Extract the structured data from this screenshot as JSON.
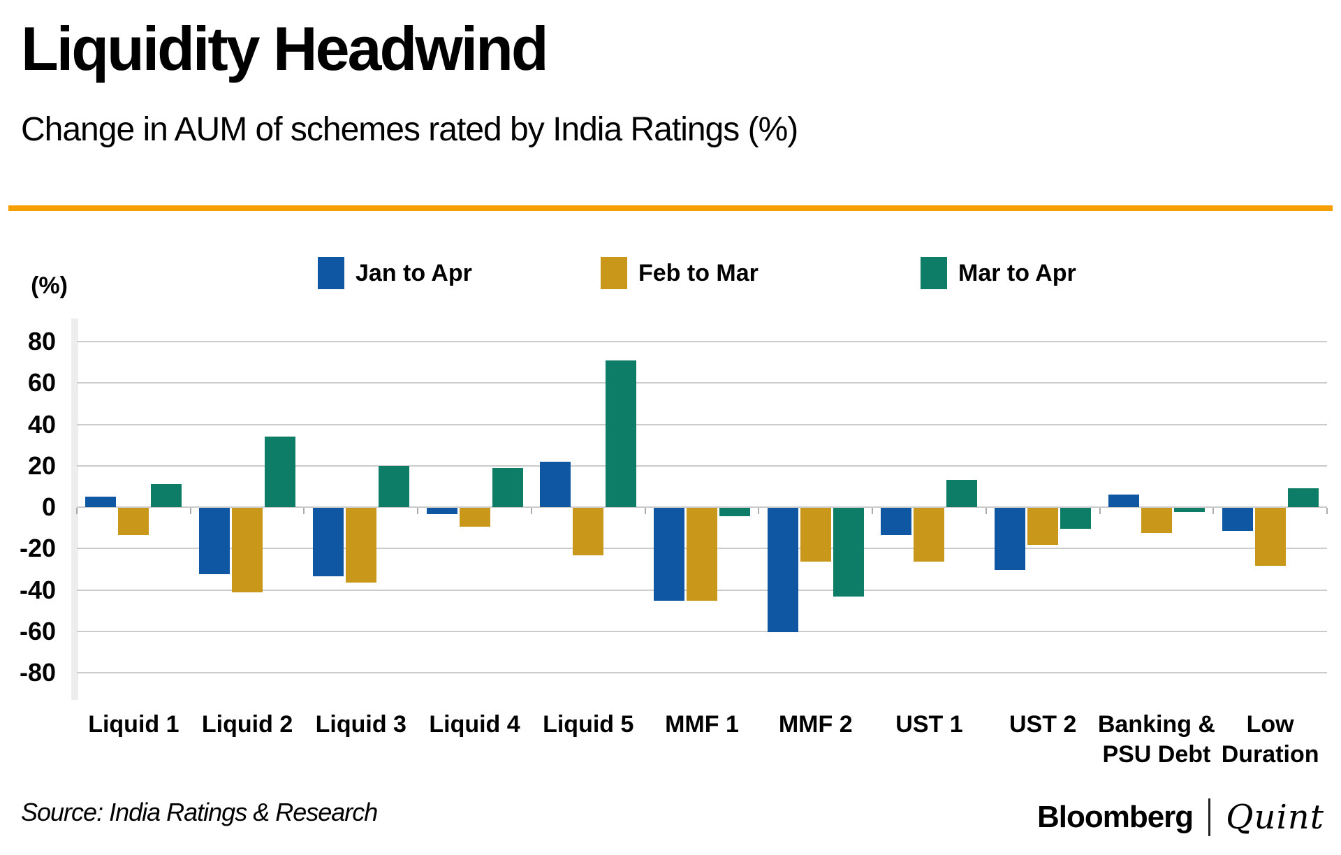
{
  "header": {
    "title": "Liquidity Headwind",
    "subtitle": "Change in AUM of schemes rated by India Ratings (%)"
  },
  "colors": {
    "accent_rule": "#F59E00",
    "gridline": "#cbcbcb",
    "bar_blue": "#0F57A2",
    "bar_gold": "#C9981A",
    "bar_teal": "#0E7D68"
  },
  "chart_data": {
    "type": "bar",
    "title": "Liquidity Headwind",
    "subtitle": "Change in AUM of schemes rated by India Ratings (%)",
    "y_unit_label": "(%)",
    "ylim": [
      -80,
      80
    ],
    "yticks": [
      80,
      60,
      40,
      20,
      0,
      -20,
      -40,
      -60,
      -80
    ],
    "grid": true,
    "legend_position": "top",
    "categories": [
      "Liquid 1",
      "Liquid 2",
      "Liquid 3",
      "Liquid 4",
      "Liquid 5",
      "MMF 1",
      "MMF 2",
      "UST 1",
      "UST 2",
      "Banking & PSU Debt",
      "Low Duration"
    ],
    "series": [
      {
        "name": "Jan to Apr",
        "color": "#0F57A2",
        "values": [
          5,
          -32,
          -33,
          -3,
          22,
          -45,
          -60,
          -13,
          -30,
          6,
          -11
        ]
      },
      {
        "name": "Feb to Mar",
        "color": "#C9981A",
        "values": [
          -13,
          -41,
          -36,
          -9,
          -23,
          -45,
          -26,
          -26,
          -18,
          -12,
          -28
        ]
      },
      {
        "name": "Mar to Apr",
        "color": "#0E7D68",
        "values": [
          11,
          34,
          20,
          19,
          71,
          -4,
          -43,
          13,
          -10,
          -2,
          9
        ]
      }
    ]
  },
  "footer": {
    "source": "Source: India Ratings & Research",
    "brand_left": "Bloomberg",
    "brand_right": "Quint"
  }
}
